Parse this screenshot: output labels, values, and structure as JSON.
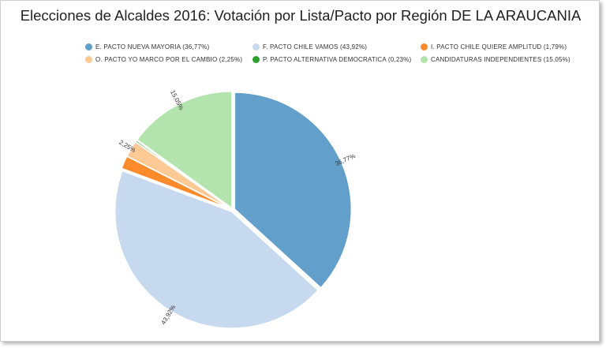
{
  "chart_data": {
    "type": "pie",
    "title": "Elecciones de Alcaldes 2016: Votación por Lista/Pacto por Región DE LA ARAUCANIA",
    "legend_position": "top",
    "series": [
      {
        "name": "E. PACTO NUEVA MAYORIA (36,77%)",
        "value": 36.77,
        "label": "36,77%",
        "color": "#62a0cb",
        "show_label": true
      },
      {
        "name": "F. PACTO CHILE VAMOS (43,92%)",
        "value": 43.92,
        "label": "43,92%",
        "color": "#c7d9ef",
        "show_label": true
      },
      {
        "name": "I. PACTO CHILE QUIERE AMPLITUD (1,79%)",
        "value": 1.79,
        "label": "1,79%",
        "color": "#fd8b2c",
        "show_label": false
      },
      {
        "name": "O. PACTO YO MARCO POR EL CAMBIO (2,25%)",
        "value": 2.25,
        "label": "2,25%",
        "color": "#fdc995",
        "show_label": true
      },
      {
        "name": "P. PACTO ALTERNATIVA DEMOCRATICA (0,23%)",
        "value": 0.23,
        "label": "0,23%",
        "color": "#2ca02c",
        "show_label": false
      },
      {
        "name": "CANDIDATURAS INDEPENDIENTES (15,05%)",
        "value": 15.05,
        "label": "15,05%",
        "color": "#b4e4ad",
        "show_label": true
      }
    ]
  }
}
